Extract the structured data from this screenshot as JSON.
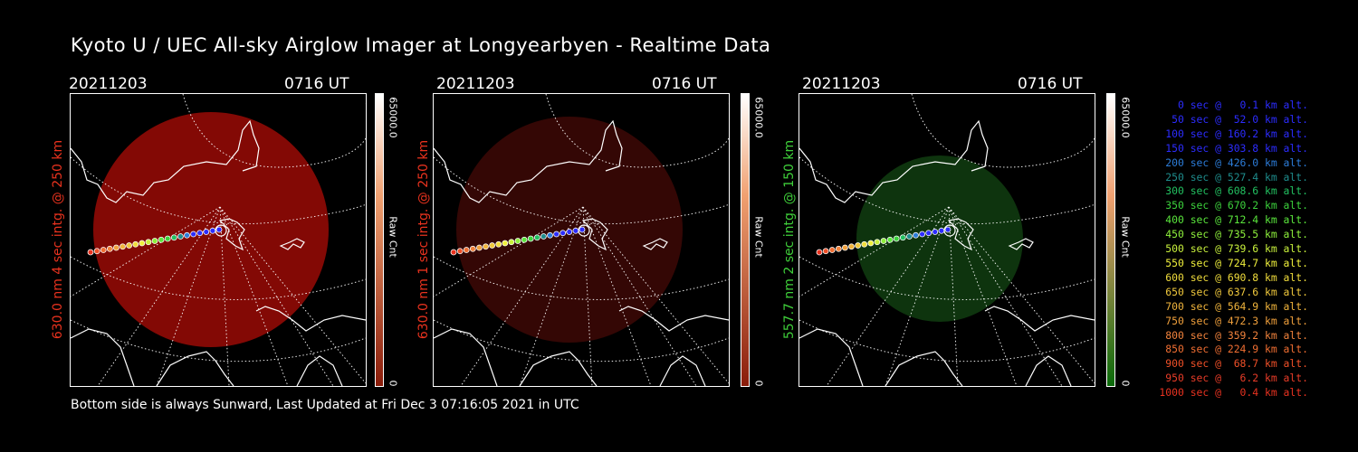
{
  "title": "Kyoto U / UEC All-sky Airglow Imager at Longyearbyen - Realtime Data",
  "panels": [
    {
      "date": "20211203",
      "time": "0716 UT",
      "side_label": "630.0 nm 4 sec intg. @ 250 km",
      "label_color": "#e8321e",
      "glow_color": "#8a0a05",
      "glow_opacity": 0.95,
      "colorbar_top": "#ffffff",
      "colorbar_bottom": "#8a1c0a",
      "colorbar_max": "65000.0",
      "colorbar_min": "0",
      "colorbar_unit": "Raw Cnt"
    },
    {
      "date": "20211203",
      "time": "0716 UT",
      "side_label": "630.0 nm 1 sec intg. @ 250 km",
      "label_color": "#e8321e",
      "glow_color": "#3a0805",
      "glow_opacity": 0.9,
      "colorbar_top": "#ffffff",
      "colorbar_bottom": "#8a1c0a",
      "colorbar_max": "65000.0",
      "colorbar_min": "0",
      "colorbar_unit": "Raw Cnt"
    },
    {
      "date": "20211203",
      "time": "0716 UT",
      "side_label": "557.7 nm 2 sec intg. @ 150 km",
      "label_color": "#3fcf3a",
      "glow_color": "#0f3a0f",
      "glow_opacity": 0.9,
      "colorbar_top": "#ffffff",
      "colorbar_bottom": "#0a6a0a",
      "colorbar_max": "65000.0",
      "colorbar_min": "0",
      "colorbar_unit": "Raw Cnt"
    }
  ],
  "legend": [
    {
      "text": "   0 sec @   0.1 km alt.",
      "color": "#2c2cff"
    },
    {
      "text": "  50 sec @  52.0 km alt.",
      "color": "#2c2cff"
    },
    {
      "text": " 100 sec @ 160.2 km alt.",
      "color": "#2c2cff"
    },
    {
      "text": " 150 sec @ 303.8 km alt.",
      "color": "#2c2cff"
    },
    {
      "text": " 200 sec @ 426.0 km alt.",
      "color": "#2c7cd8"
    },
    {
      "text": " 250 sec @ 527.4 km alt.",
      "color": "#1e8c8c"
    },
    {
      "text": " 300 sec @ 608.6 km alt.",
      "color": "#22c060"
    },
    {
      "text": " 350 sec @ 670.2 km alt.",
      "color": "#3cd23c"
    },
    {
      "text": " 400 sec @ 712.4 km alt.",
      "color": "#5ae63c"
    },
    {
      "text": " 450 sec @ 735.5 km alt.",
      "color": "#8ef03c"
    },
    {
      "text": " 500 sec @ 739.6 km alt.",
      "color": "#c8f03c"
    },
    {
      "text": " 550 sec @ 724.7 km alt.",
      "color": "#f0f03c"
    },
    {
      "text": " 600 sec @ 690.8 km alt.",
      "color": "#f0dc3c"
    },
    {
      "text": " 650 sec @ 637.6 km alt.",
      "color": "#f0c83c"
    },
    {
      "text": " 700 sec @ 564.9 km alt.",
      "color": "#f0b43c"
    },
    {
      "text": " 750 sec @ 472.3 km alt.",
      "color": "#f0a03c"
    },
    {
      "text": " 800 sec @ 359.2 km alt.",
      "color": "#f0823c"
    },
    {
      "text": " 850 sec @ 224.9 km alt.",
      "color": "#f06e32"
    },
    {
      "text": " 900 sec @  68.7 km alt.",
      "color": "#f05028"
    },
    {
      "text": " 950 sec @   6.2 km alt.",
      "color": "#e83c28"
    },
    {
      "text": "1000 sec @   0.4 km alt.",
      "color": "#e83220"
    }
  ],
  "footer": "Bottom side is always Sunward, Last Updated at Fri Dec  3 07:16:05 2021 in UTC"
}
